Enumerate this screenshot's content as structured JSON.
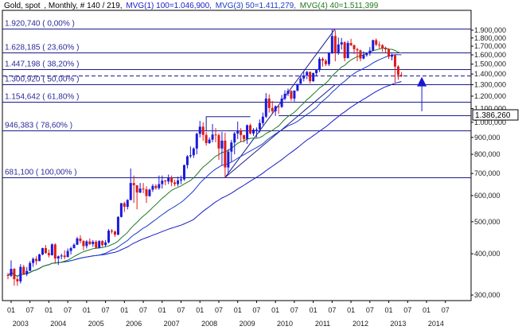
{
  "header": {
    "instrument": "Gold, spot",
    "info": ", Monthly, # 140 / 219,",
    "ma1": "MVG(1) 100=1.046,900,",
    "ma2": "MVG(3) 50=1.411,279,",
    "ma3": "MVG(4) 40=1.511,399"
  },
  "colors": {
    "background": "#ffffff",
    "plot_border": "#000000",
    "fib_line": "#1b1b8a",
    "up_candle": "#1a1adc",
    "down_candle": "#dc1a1a",
    "ma1": "#1a1acc",
    "ma2": "#1a3cc8",
    "ma3": "#1e7a1e",
    "arrow": "#1a1ad0",
    "ma4_header": "#1e7a1e"
  },
  "price_box": {
    "value": "1.386,260"
  },
  "chart_data": {
    "type": "candlestick",
    "title": "",
    "ylim": [
      270000,
      1950000
    ],
    "y_ticks": [
      {
        "value": 300000,
        "label": "300,000"
      },
      {
        "value": 400000,
        "label": "400,000"
      },
      {
        "value": 500000,
        "label": "500,000"
      },
      {
        "value": 600000,
        "label": "600,000"
      },
      {
        "value": 700000,
        "label": "700,000"
      },
      {
        "value": 800000,
        "label": "800,000"
      },
      {
        "value": 900000,
        "label": "900,000"
      },
      {
        "value": 1000000,
        "label": "1.000,000"
      },
      {
        "value": 1100000,
        "label": "1.100,000"
      },
      {
        "value": 1200000,
        "label": "1.200,000"
      },
      {
        "value": 1300000,
        "label": "1.300,000"
      },
      {
        "value": 1400000,
        "label": "1.400,000"
      },
      {
        "value": 1500000,
        "label": "1.500,000"
      },
      {
        "value": 1600000,
        "label": "1.600,000"
      },
      {
        "value": 1700000,
        "label": "1.700,000"
      },
      {
        "value": 1800000,
        "label": "1.800,000"
      },
      {
        "value": 1900000,
        "label": "1.900,000"
      }
    ],
    "x_month_ticks": [
      "01",
      "07",
      "01",
      "07",
      "01",
      "07",
      "01",
      "07",
      "01",
      "07",
      "01",
      "07",
      "01",
      "07",
      "01",
      "07",
      "01",
      "07",
      "01",
      "07",
      "01",
      "07",
      "01",
      "07"
    ],
    "x_year_labels": [
      "2003",
      "2004",
      "2005",
      "2006",
      "2007",
      "2008",
      "2009",
      "2010",
      "2011",
      "2012",
      "2013",
      "2014"
    ],
    "fibonacci_levels": [
      {
        "value": 1920740,
        "label": "1.920,740 ( 0,00% )"
      },
      {
        "value": 1628185,
        "label": "1.628,185 ( 23,60% )"
      },
      {
        "value": 1447198,
        "label": "1.447,198 ( 38,20% )"
      },
      {
        "value": 1300920,
        "label": "1.300,920 ( 50,00% )"
      },
      {
        "value": 1154642,
        "label": "1.154,642 ( 61,80% )"
      },
      {
        "value": 946383,
        "label": "946,383 ( 78,60% )"
      },
      {
        "value": 681100,
        "label": "681,100 ( 100,00% )"
      }
    ],
    "reference_dashed_level": 1386260,
    "ohlc_monthly": [
      [
        345,
        350,
        335,
        343
      ],
      [
        343,
        382,
        340,
        360
      ],
      [
        360,
        362,
        320,
        335
      ],
      [
        335,
        340,
        320,
        330
      ],
      [
        330,
        372,
        325,
        365
      ],
      [
        365,
        370,
        345,
        347
      ],
      [
        347,
        365,
        342,
        355
      ],
      [
        355,
        380,
        355,
        375
      ],
      [
        375,
        390,
        365,
        386
      ],
      [
        386,
        393,
        370,
        380
      ],
      [
        380,
        400,
        380,
        398
      ],
      [
        398,
        417,
        396,
        416
      ],
      [
        416,
        425,
        400,
        402
      ],
      [
        402,
        412,
        390,
        396
      ],
      [
        396,
        430,
        395,
        427
      ],
      [
        427,
        430,
        375,
        387
      ],
      [
        387,
        395,
        370,
        393
      ],
      [
        393,
        400,
        385,
        395
      ],
      [
        395,
        410,
        385,
        391
      ],
      [
        391,
        415,
        390,
        408
      ],
      [
        408,
        420,
        398,
        416
      ],
      [
        416,
        430,
        415,
        426
      ],
      [
        426,
        450,
        425,
        445
      ],
      [
        445,
        455,
        430,
        437
      ],
      [
        437,
        440,
        410,
        422
      ],
      [
        422,
        440,
        415,
        436
      ],
      [
        436,
        445,
        425,
        428
      ],
      [
        428,
        440,
        420,
        435
      ],
      [
        435,
        440,
        415,
        417
      ],
      [
        417,
        440,
        415,
        437
      ],
      [
        437,
        440,
        420,
        425
      ],
      [
        425,
        440,
        420,
        433
      ],
      [
        433,
        475,
        430,
        470
      ],
      [
        470,
        475,
        460,
        467
      ],
      [
        467,
        470,
        450,
        457
      ],
      [
        457,
        520,
        455,
        517
      ],
      [
        517,
        570,
        515,
        569
      ],
      [
        569,
        575,
        535,
        555
      ],
      [
        555,
        585,
        545,
        582
      ],
      [
        582,
        725,
        580,
        655
      ],
      [
        655,
        690,
        570,
        645
      ],
      [
        645,
        645,
        545,
        613
      ],
      [
        613,
        655,
        610,
        630
      ],
      [
        630,
        655,
        610,
        627
      ],
      [
        627,
        640,
        570,
        598
      ],
      [
        598,
        630,
        595,
        625
      ],
      [
        625,
        650,
        615,
        642
      ],
      [
        642,
        650,
        625,
        632
      ],
      [
        632,
        690,
        625,
        650
      ],
      [
        650,
        690,
        630,
        666
      ],
      [
        666,
        670,
        645,
        662
      ],
      [
        662,
        695,
        650,
        680
      ],
      [
        680,
        690,
        640,
        658
      ],
      [
        658,
        670,
        640,
        650
      ],
      [
        650,
        685,
        640,
        667
      ],
      [
        667,
        690,
        650,
        672
      ],
      [
        672,
        745,
        665,
        742
      ],
      [
        742,
        795,
        725,
        789
      ],
      [
        789,
        845,
        780,
        795
      ],
      [
        795,
        840,
        780,
        833
      ],
      [
        833,
        930,
        800,
        923
      ],
      [
        923,
        1010,
        900,
        970
      ],
      [
        970,
        1000,
        880,
        916
      ],
      [
        916,
        935,
        850,
        865
      ],
      [
        865,
        900,
        860,
        886
      ],
      [
        886,
        988,
        870,
        918
      ],
      [
        918,
        960,
        870,
        915
      ],
      [
        915,
        925,
        770,
        833
      ],
      [
        833,
        935,
        740,
        880
      ],
      [
        880,
        930,
        680,
        730
      ],
      [
        730,
        830,
        700,
        815
      ],
      [
        815,
        885,
        760,
        869
      ],
      [
        869,
        935,
        800,
        925
      ],
      [
        925,
        1005,
        890,
        942
      ],
      [
        942,
        960,
        870,
        915
      ],
      [
        915,
        915,
        870,
        890
      ],
      [
        890,
        985,
        860,
        980
      ],
      [
        980,
        990,
        920,
        925
      ],
      [
        925,
        960,
        910,
        950
      ],
      [
        950,
        965,
        900,
        952
      ],
      [
        952,
        1020,
        930,
        995
      ],
      [
        995,
        1070,
        980,
        1040
      ],
      [
        1040,
        1226,
        1030,
        1180
      ],
      [
        1180,
        1215,
        1070,
        1105
      ],
      [
        1105,
        1160,
        1060,
        1080
      ],
      [
        1080,
        1125,
        1045,
        1118
      ],
      [
        1118,
        1120,
        1060,
        1113
      ],
      [
        1113,
        1210,
        1105,
        1179
      ],
      [
        1179,
        1250,
        1165,
        1220
      ],
      [
        1220,
        1265,
        1200,
        1245
      ],
      [
        1245,
        1250,
        1160,
        1180
      ],
      [
        1180,
        1240,
        1155,
        1248
      ],
      [
        1248,
        1300,
        1240,
        1307
      ],
      [
        1307,
        1385,
        1310,
        1357
      ],
      [
        1357,
        1425,
        1330,
        1385
      ],
      [
        1385,
        1430,
        1350,
        1421
      ],
      [
        1421,
        1425,
        1310,
        1332
      ],
      [
        1332,
        1415,
        1325,
        1409
      ],
      [
        1409,
        1445,
        1385,
        1439
      ],
      [
        1439,
        1575,
        1420,
        1556
      ],
      [
        1556,
        1575,
        1475,
        1536
      ],
      [
        1536,
        1555,
        1480,
        1500
      ],
      [
        1500,
        1630,
        1480,
        1627
      ],
      [
        1627,
        1920,
        1610,
        1825
      ],
      [
        1825,
        1900,
        1530,
        1620
      ],
      [
        1620,
        1805,
        1600,
        1720
      ],
      [
        1720,
        1800,
        1660,
        1746
      ],
      [
        1746,
        1760,
        1530,
        1565
      ],
      [
        1565,
        1765,
        1560,
        1738
      ],
      [
        1738,
        1790,
        1700,
        1711
      ],
      [
        1711,
        1720,
        1610,
        1665
      ],
      [
        1665,
        1680,
        1530,
        1651
      ],
      [
        1651,
        1660,
        1530,
        1560
      ],
      [
        1560,
        1640,
        1550,
        1597
      ],
      [
        1597,
        1630,
        1580,
        1615
      ],
      [
        1615,
        1690,
        1590,
        1648
      ],
      [
        1648,
        1780,
        1640,
        1773
      ],
      [
        1773,
        1795,
        1700,
        1718
      ],
      [
        1718,
        1755,
        1670,
        1712
      ],
      [
        1712,
        1725,
        1635,
        1675
      ],
      [
        1675,
        1695,
        1625,
        1663
      ],
      [
        1663,
        1675,
        1555,
        1580
      ],
      [
        1580,
        1615,
        1540,
        1598
      ],
      [
        1598,
        1605,
        1320,
        1475
      ],
      [
        1475,
        1488,
        1345,
        1393
      ],
      [
        1393,
        1420,
        1370,
        1386
      ]
    ]
  }
}
